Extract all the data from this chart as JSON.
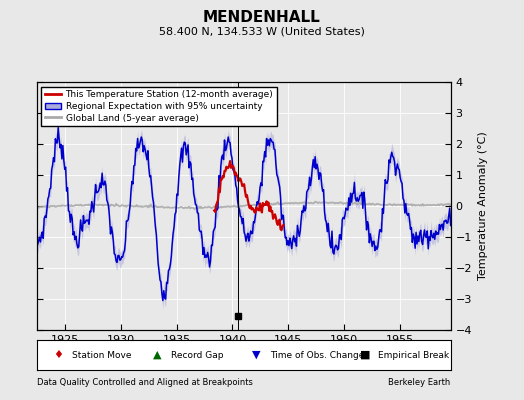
{
  "title": "MENDENHALL",
  "subtitle": "58.400 N, 134.533 W (United States)",
  "ylabel": "Temperature Anomaly (°C)",
  "xlabel_left": "Data Quality Controlled and Aligned at Breakpoints",
  "xlabel_right": "Berkeley Earth",
  "xlim": [
    1922.5,
    1959.5
  ],
  "ylim": [
    -4,
    4
  ],
  "yticks": [
    -4,
    -3,
    -2,
    -1,
    0,
    1,
    2,
    3,
    4
  ],
  "xticks": [
    1925,
    1930,
    1935,
    1940,
    1945,
    1950,
    1955
  ],
  "background_color": "#e8e8e8",
  "plot_bg_color": "#e8e8e8",
  "red_line_color": "#cc0000",
  "blue_line_color": "#0000cc",
  "blue_fill_color": "#aaaadd",
  "gray_line_color": "#aaaaaa",
  "obs_change_year": 1940.5
}
